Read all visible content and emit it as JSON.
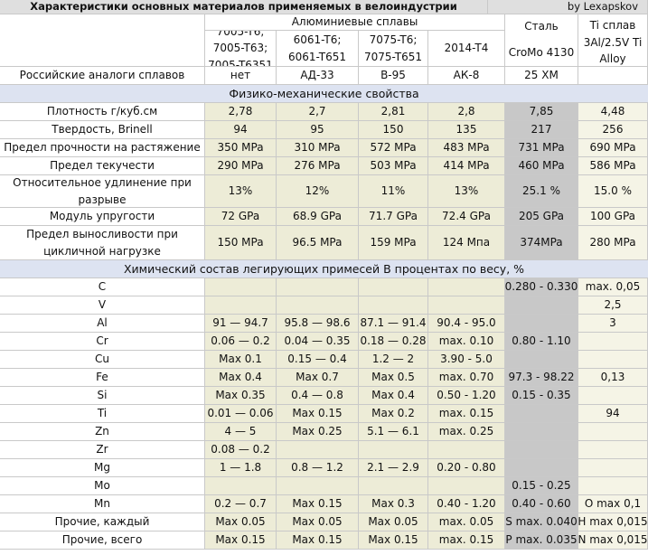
{
  "title": "Характеристики основных материалов применяемых в велоиндустрии",
  "author": "by Lexapskov",
  "group_header": "Алюминиевые сплавы",
  "columns": {
    "a1": "7005-T6; 7005-T63; 7005-T6351",
    "a2": "6061-T6; 6061-T651",
    "a3": "7075-T6; 7075-T651",
    "a4": "2014-T4",
    "steel_title": "Сталь",
    "steel_sub": "CroMo 4130",
    "ti_title": "Ti сплав 3Al/2.5V Ti Alloy"
  },
  "analogs": {
    "label": "Российские аналоги сплавов",
    "values": [
      "нет",
      "АД-33",
      "В-95",
      "АК-8",
      "25 ХМ",
      ""
    ]
  },
  "section1": "Физико-механические свойства",
  "mech": [
    {
      "label": "Плотность  г/куб.см",
      "values": [
        "2,78",
        "2,7",
        "2,81",
        "2,8",
        "7,85",
        "4,48"
      ]
    },
    {
      "label": "Твердость, Brinell",
      "values": [
        "94",
        "95",
        "150",
        "135",
        "217",
        "256"
      ]
    },
    {
      "label": "Предел прочности на растяжение",
      "values": [
        "350 MPa",
        "310 MPa",
        "572 MPa",
        "483 MPa",
        "731 MPa",
        "690 MPa"
      ]
    },
    {
      "label": "Предел текучести",
      "values": [
        "290 MPa",
        "276 MPa",
        "503 MPa",
        "414 MPa",
        "460 MPa",
        "586 MPa"
      ]
    },
    {
      "label": "Относительное удлинение при разрыве",
      "values": [
        "13%",
        "12%",
        "11%",
        "13%",
        "25.1 %",
        "15.0 %"
      ]
    },
    {
      "label": "Модуль упругости",
      "values": [
        "72 GPa",
        "68.9 GPa",
        "71.7 GPa",
        "72.4 GPa",
        "205 GPa",
        "100 GPa"
      ]
    },
    {
      "label": "Предел выносливости при цикличной нагрузке",
      "values": [
        "150 MPa",
        "96.5 MPa",
        "159 MPa",
        "124 Мпа",
        "374MPa",
        "280 MPa"
      ]
    }
  ],
  "section2": "Химический состав легирующих примесей В процентах по весу, %",
  "chem": [
    {
      "label": "C",
      "values": [
        "",
        "",
        "",
        "",
        "0.280 - 0.330",
        "max. 0,05"
      ]
    },
    {
      "label": "V",
      "values": [
        "",
        "",
        "",
        "",
        "",
        "2,5"
      ]
    },
    {
      "label": "Al",
      "values": [
        "91 — 94.7",
        "95.8 — 98.6",
        "87.1 — 91.4",
        "90.4 - 95.0",
        "",
        "3"
      ]
    },
    {
      "label": "Cr",
      "values": [
        "0.06 — 0.2",
        "0.04 — 0.35",
        "0.18 — 0.28",
        "max. 0.10",
        "0.80 - 1.10",
        ""
      ]
    },
    {
      "label": "Cu",
      "values": [
        "Max 0.1",
        "0.15 — 0.4",
        "1.2 — 2",
        "3.90 - 5.0",
        "",
        ""
      ]
    },
    {
      "label": "Fe",
      "values": [
        "Max 0.4",
        "Max 0.7",
        "Max 0.5",
        "max. 0.70",
        "97.3 - 98.22",
        "0,13"
      ]
    },
    {
      "label": "Si",
      "values": [
        "Max 0.35",
        "0.4 — 0.8",
        "Max 0.4",
        "0.50 - 1.20",
        "0.15 - 0.35",
        ""
      ]
    },
    {
      "label": "Ti",
      "values": [
        "0.01 — 0.06",
        "Max 0.15",
        "Max 0.2",
        "max. 0.15",
        "",
        "94"
      ]
    },
    {
      "label": "Zn",
      "values": [
        "4 — 5",
        "Max 0.25",
        "5.1 — 6.1",
        "max. 0.25",
        "",
        ""
      ]
    },
    {
      "label": "Zr",
      "values": [
        "0.08 — 0.2",
        "",
        "",
        "",
        "",
        ""
      ]
    },
    {
      "label": "Mg",
      "values": [
        "1 — 1.8",
        "0.8 — 1.2",
        "2.1 — 2.9",
        "0.20 - 0.80",
        "",
        ""
      ]
    },
    {
      "label": "Mo",
      "values": [
        "",
        "",
        "",
        "",
        "0.15 - 0.25",
        ""
      ]
    },
    {
      "label": "Mn",
      "values": [
        "0.2 — 0.7",
        "Max 0.15",
        "Max 0.3",
        "0.40 - 1.20",
        "0.40 - 0.60",
        "O max 0,1"
      ]
    },
    {
      "label": "Прочие, каждый",
      "values": [
        "Max 0.05",
        "Max 0.05",
        "Max 0.05",
        "max. 0.05",
        "S max. 0.040",
        "H max 0,015"
      ]
    },
    {
      "label": "Прочие, всего",
      "values": [
        "Max 0.15",
        "Max 0.15",
        "Max 0.15",
        "max. 0.15",
        "P max. 0.035",
        "N max 0,015"
      ]
    }
  ]
}
